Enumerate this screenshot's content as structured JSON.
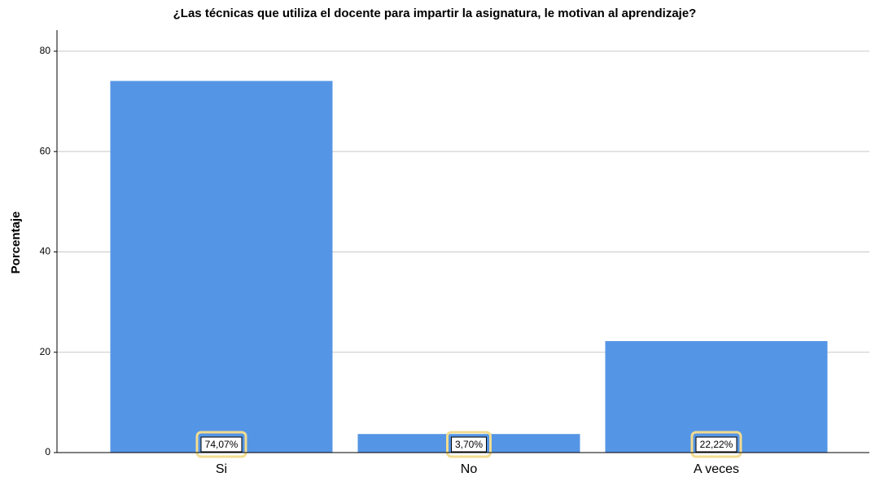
{
  "chart_data": {
    "type": "bar",
    "title": "¿Las técnicas que utiliza el docente para impartir la asignatura, le motivan al aprendizaje?",
    "y_label": "Porcentaje",
    "categories": [
      "Si",
      "No",
      "A veces"
    ],
    "values": [
      74.07,
      3.7,
      22.22
    ],
    "value_labels": [
      "74,07%",
      "3,70%",
      "22,22%"
    ],
    "color": "#5595e5",
    "ylim": [
      0,
      84.2
    ],
    "yticks": [
      0,
      20,
      40,
      60,
      80
    ],
    "grid": true
  }
}
